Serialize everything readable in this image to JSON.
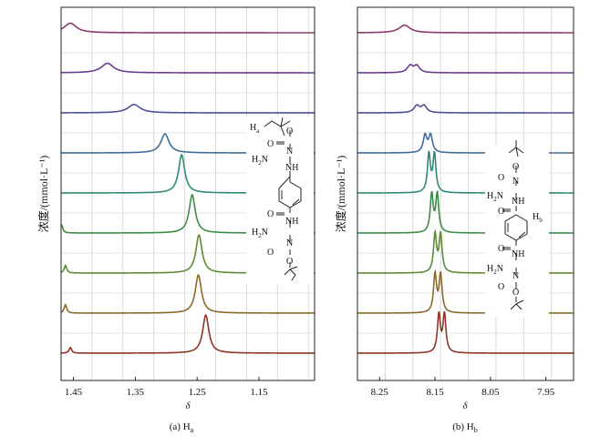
{
  "chart_data": [
    {
      "type": "line",
      "caption": "(a) H",
      "caption_sub": "a",
      "xlabel": "δ",
      "ylabel": "浓度/(mmol·L⁻¹)",
      "xlim": [
        1.47,
        1.06
      ],
      "x_ticks": [
        1.45,
        1.35,
        1.25,
        1.15
      ],
      "x_tick_labels": [
        "1.45",
        "1.35",
        "1.25",
        "1.15"
      ],
      "peak_unit_width": 0.006,
      "series": [
        {
          "color": "#8b3a6e",
          "peaks": [
            {
              "x": 1.455,
              "h": 0.25,
              "w": 2.0
            }
          ]
        },
        {
          "color": "#6a3d8f",
          "peaks": [
            {
              "x": 1.395,
              "h": 0.25,
              "w": 2.0
            }
          ]
        },
        {
          "color": "#4c4f97",
          "peaks": [
            {
              "x": 1.352,
              "h": 0.22,
              "w": 2.0
            }
          ]
        },
        {
          "color": "#3d6e9a",
          "peaks": [
            {
              "x": 1.302,
              "h": 0.5,
              "w": 1.3
            }
          ]
        },
        {
          "color": "#2e8a78",
          "peaks": [
            {
              "x": 1.275,
              "h": 1.0,
              "w": 1.0
            }
          ]
        },
        {
          "color": "#3c8c45",
          "peaks": [
            {
              "x": 1.258,
              "h": 1.0,
              "w": 1.0
            },
            {
              "x": 1.469,
              "h": 0.2,
              "w": 0.4
            }
          ]
        },
        {
          "color": "#5d8a35",
          "peaks": [
            {
              "x": 1.247,
              "h": 1.0,
              "w": 1.0
            },
            {
              "x": 1.463,
              "h": 0.2,
              "w": 0.4
            }
          ]
        },
        {
          "color": "#8a6a2a",
          "peaks": [
            {
              "x": 1.248,
              "h": 1.0,
              "w": 1.0
            },
            {
              "x": 1.463,
              "h": 0.22,
              "w": 0.4
            }
          ]
        },
        {
          "color": "#8f3528",
          "peaks": [
            {
              "x": 1.236,
              "h": 1.0,
              "w": 1.0
            },
            {
              "x": 1.455,
              "h": 0.15,
              "w": 0.4
            }
          ]
        }
      ]
    },
    {
      "type": "line",
      "caption": "(b) H",
      "caption_sub": "b",
      "xlabel": "δ",
      "ylabel": "浓度/(mmol·L⁻¹)",
      "xlim": [
        8.29,
        7.9
      ],
      "x_ticks": [
        8.25,
        8.15,
        8.05,
        7.95
      ],
      "x_tick_labels": [
        "8.25",
        "8.15",
        "8.05",
        "7.95"
      ],
      "peak_unit_width": 0.004,
      "series": [
        {
          "color": "#8b3a6e",
          "peaks": [
            {
              "x": 8.205,
              "h": 0.2,
              "w": 3.0
            }
          ]
        },
        {
          "color": "#6a3d8f",
          "peaks": [
            {
              "x": 8.195,
              "h": 0.18,
              "w": 1.5
            },
            {
              "x": 8.183,
              "h": 0.18,
              "w": 1.5
            }
          ]
        },
        {
          "color": "#4c4f97",
          "peaks": [
            {
              "x": 8.183,
              "h": 0.18,
              "w": 1.5
            },
            {
              "x": 8.17,
              "h": 0.18,
              "w": 1.5
            }
          ]
        },
        {
          "color": "#3d6e9a",
          "peaks": [
            {
              "x": 8.168,
              "h": 0.45,
              "w": 1.0
            },
            {
              "x": 8.158,
              "h": 0.45,
              "w": 1.0
            }
          ]
        },
        {
          "color": "#2e8a78",
          "peaks": [
            {
              "x": 8.161,
              "h": 1.0,
              "w": 0.8
            },
            {
              "x": 8.151,
              "h": 1.0,
              "w": 0.8
            }
          ]
        },
        {
          "color": "#3c8c45",
          "peaks": [
            {
              "x": 8.156,
              "h": 1.0,
              "w": 0.8
            },
            {
              "x": 8.146,
              "h": 1.0,
              "w": 0.8
            }
          ]
        },
        {
          "color": "#5d8a35",
          "peaks": [
            {
              "x": 8.15,
              "h": 1.0,
              "w": 0.8
            },
            {
              "x": 8.14,
              "h": 1.0,
              "w": 0.8
            }
          ]
        },
        {
          "color": "#8a6a2a",
          "peaks": [
            {
              "x": 8.15,
              "h": 1.0,
              "w": 0.8
            },
            {
              "x": 8.14,
              "h": 1.0,
              "w": 0.8
            }
          ]
        },
        {
          "color": "#8f3528",
          "peaks": [
            {
              "x": 8.143,
              "h": 1.0,
              "w": 0.8
            },
            {
              "x": 8.133,
              "h": 1.0,
              "w": 0.8
            }
          ]
        }
      ]
    }
  ],
  "structure_a": {
    "h_label": "H",
    "h_sub": "a",
    "o1": "O",
    "o2": "O",
    "n1": "N",
    "nh1": "NH",
    "h2n1": "H",
    "h2n1_sub": "2",
    "h2n1_tail": "N",
    "o3": "O",
    "nh2": "NH",
    "h2n2": "H",
    "h2n2_sub": "2",
    "h2n2_tail": "N",
    "n2": "N",
    "o4": "O",
    "o5": "O"
  },
  "structure_b": {
    "o1": "O",
    "o2": "O",
    "n1": "N",
    "nh1": "NH",
    "h2n1": "H",
    "h2n1_sub": "2",
    "h2n1_tail": "N",
    "o3": "O",
    "hb": "H",
    "hb_sub": "b",
    "o4": "O",
    "nh2": "NH",
    "h2n2": "H",
    "h2n2_sub": "2",
    "h2n2_tail": "N",
    "n2": "N",
    "o5": "O",
    "o6": "O"
  }
}
